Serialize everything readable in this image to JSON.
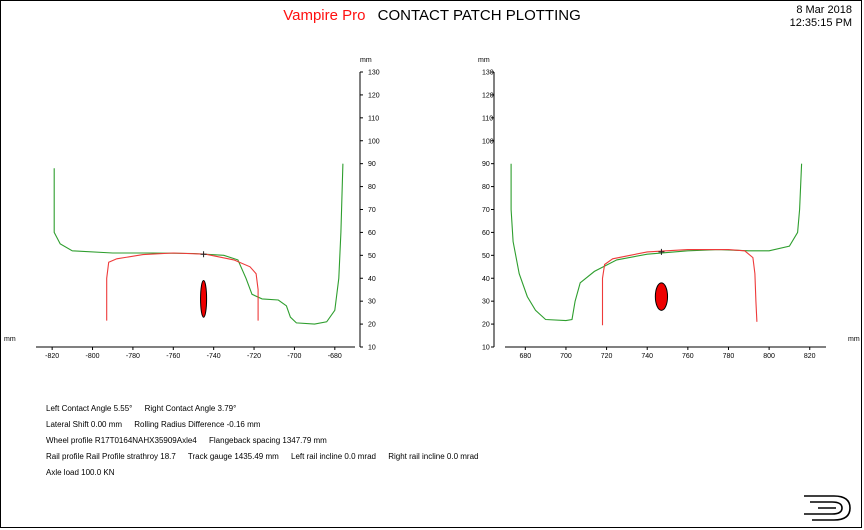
{
  "header": {
    "brand": "Vampire Pro",
    "title": "CONTACT PATCH PLOTTING",
    "date": "8 Mar 2018",
    "time": "12:35:15 PM"
  },
  "colors": {
    "wheel": "#2e9e2e",
    "rail": "#ee3a3a",
    "patch": "#ee0000",
    "brand": "#ff1010"
  },
  "info": {
    "row1": {
      "left_contact_angle": "Left Contact Angle   5.55°",
      "right_contact_angle": "Right Contact Angle   3.79°"
    },
    "row2": {
      "lateral_shift": "Lateral Shift   0.00 mm",
      "rolling_radius": "Rolling Radius Difference   -0.16 mm"
    },
    "row3": {
      "wheel_profile": "Wheel profile    R17T0164NAHX35909Axle4",
      "flangeback": "Flangeback spacing   1347.79 mm"
    },
    "row4": {
      "rail_profile": "Rail profile     Rail Profile strathroy 18.7",
      "track_gauge": "Track gauge   1435.49 mm",
      "left_incline": "Left rail incline   0.0 mrad",
      "right_incline": "Right rail incline   0.0 mrad"
    },
    "row5": {
      "axle_load": "Axle load   100.0 KN"
    }
  },
  "chart_data": [
    {
      "type": "line",
      "side": "left",
      "xlabel": "mm",
      "ylabel": "mm",
      "xlim": [
        -828,
        -670
      ],
      "ylim": [
        10,
        130
      ],
      "x_ticks": [
        -820,
        -800,
        -780,
        -760,
        -740,
        -720,
        -700,
        -680
      ],
      "y_ticks": [
        10,
        20,
        30,
        40,
        50,
        60,
        70,
        80,
        90,
        100,
        110,
        120,
        130
      ],
      "grid": false,
      "series": [
        {
          "role": "wheel",
          "points": [
            [
              -819,
              88
            ],
            [
              -819,
              60
            ],
            [
              -816,
              55
            ],
            [
              -810,
              52
            ],
            [
              -790,
              51
            ],
            [
              -770,
              51
            ],
            [
              -750,
              50.8
            ],
            [
              -735,
              50
            ],
            [
              -728,
              48
            ],
            [
              -724,
              40
            ],
            [
              -721,
              33
            ],
            [
              -716,
              31
            ],
            [
              -708,
              30.5
            ],
            [
              -704,
              28
            ],
            [
              -702,
              23
            ],
            [
              -699,
              20.5
            ],
            [
              -690,
              20
            ],
            [
              -684,
              21
            ],
            [
              -680,
              26
            ],
            [
              -678,
              40
            ],
            [
              -677,
              60
            ],
            [
              -676,
              90
            ]
          ]
        },
        {
          "role": "rail",
          "points": [
            [
              -793,
              21.5
            ],
            [
              -793,
              40
            ],
            [
              -792,
              47
            ],
            [
              -788,
              48.5
            ],
            [
              -775,
              50.3
            ],
            [
              -760,
              51
            ],
            [
              -744,
              50.5
            ],
            [
              -730,
              48
            ],
            [
              -722,
              45
            ],
            [
              -719,
              42
            ],
            [
              -718,
              35
            ],
            [
              -718,
              21.5
            ]
          ]
        }
      ],
      "contact_point": [
        -745,
        50.5
      ],
      "contact_patch": {
        "x": -745,
        "y": 31,
        "half_width": 1.5,
        "half_height": 8
      }
    },
    {
      "type": "line",
      "side": "right",
      "xlabel": "mm",
      "ylabel": "mm",
      "xlim": [
        670,
        828
      ],
      "ylim": [
        10,
        130
      ],
      "x_ticks": [
        680,
        700,
        720,
        740,
        760,
        780,
        800,
        820
      ],
      "y_ticks": [
        10,
        20,
        30,
        40,
        50,
        60,
        70,
        80,
        90,
        100,
        110,
        120,
        130
      ],
      "grid": false,
      "series": [
        {
          "role": "wheel",
          "points": [
            [
              673,
              90
            ],
            [
              673,
              70
            ],
            [
              674,
              56
            ],
            [
              677,
              42
            ],
            [
              681,
              32
            ],
            [
              685,
              26
            ],
            [
              690,
              22
            ],
            [
              700,
              21.5
            ],
            [
              703,
              22
            ],
            [
              704.5,
              30
            ],
            [
              707,
              38
            ],
            [
              714,
              43
            ],
            [
              725,
              48
            ],
            [
              740,
              50.5
            ],
            [
              760,
              52
            ],
            [
              775,
              52.5
            ],
            [
              790,
              52
            ],
            [
              800,
              52
            ],
            [
              810,
              54
            ],
            [
              814,
              60
            ],
            [
              815,
              70
            ],
            [
              816,
              90
            ]
          ]
        },
        {
          "role": "rail",
          "points": [
            [
              718,
              19.5
            ],
            [
              718,
              40
            ],
            [
              719,
              46
            ],
            [
              723,
              48.5
            ],
            [
              740,
              51.5
            ],
            [
              760,
              52.5
            ],
            [
              780,
              52.5
            ],
            [
              788,
              52
            ],
            [
              792,
              49
            ],
            [
              793,
              42
            ],
            [
              793.5,
              30
            ],
            [
              794,
              21
            ]
          ]
        }
      ],
      "contact_point": [
        747,
        51.5
      ],
      "contact_patch": {
        "x": 747,
        "y": 32,
        "half_width": 3,
        "half_height": 6
      }
    }
  ]
}
